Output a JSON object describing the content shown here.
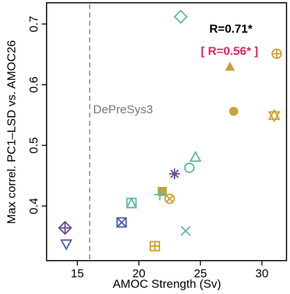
{
  "chart_data": {
    "type": "scatter",
    "xlabel": "AMOC Strength (Sv)",
    "ylabel": "Max correl. PC1–LSD vs. AMOC26",
    "xlim": [
      12.5,
      32.0
    ],
    "ylim": [
      0.31,
      0.735
    ],
    "xticks": [
      15,
      20,
      25,
      30
    ],
    "yticks": [
      0.4,
      0.5,
      0.6,
      0.7
    ],
    "grid": false,
    "reference_line": {
      "x": 16.0,
      "label": "DePreSys3"
    },
    "annotations": {
      "r_all": "R=0.71*",
      "r_other": "[ R=0.56* ]"
    },
    "colors": {
      "teal": "#5fb8a6",
      "gold": "#c9a234",
      "purple": "#6e4c9a",
      "blue": "#4a5fb0",
      "red": "#e6245f",
      "dash": "#777777"
    },
    "points": [
      {
        "x": 23.4,
        "y": 0.712,
        "marker": "diamond",
        "color": "teal"
      },
      {
        "x": 31.2,
        "y": 0.651,
        "marker": "circle-plus",
        "color": "gold"
      },
      {
        "x": 27.4,
        "y": 0.629,
        "marker": "triangle-filled",
        "color": "gold"
      },
      {
        "x": 27.7,
        "y": 0.556,
        "marker": "circle-filled",
        "color": "gold"
      },
      {
        "x": 31.0,
        "y": 0.549,
        "marker": "hourglass",
        "color": "gold"
      },
      {
        "x": 24.6,
        "y": 0.48,
        "marker": "triangle",
        "color": "teal"
      },
      {
        "x": 24.1,
        "y": 0.463,
        "marker": "circle",
        "color": "teal"
      },
      {
        "x": 22.9,
        "y": 0.453,
        "marker": "asterisk",
        "color": "purple"
      },
      {
        "x": 21.9,
        "y": 0.424,
        "marker": "square-filled",
        "color": "gold"
      },
      {
        "x": 21.7,
        "y": 0.419,
        "marker": "plus",
        "color": "teal"
      },
      {
        "x": 22.5,
        "y": 0.412,
        "marker": "circle-x",
        "color": "gold"
      },
      {
        "x": 19.4,
        "y": 0.405,
        "marker": "square-triangle",
        "color": "teal"
      },
      {
        "x": 18.6,
        "y": 0.373,
        "marker": "square-x",
        "color": "blue"
      },
      {
        "x": 23.8,
        "y": 0.359,
        "marker": "cross",
        "color": "teal"
      },
      {
        "x": 14.0,
        "y": 0.364,
        "marker": "diamond-plus",
        "color": "purple"
      },
      {
        "x": 14.1,
        "y": 0.338,
        "marker": "triangle-down",
        "color": "blue"
      },
      {
        "x": 21.3,
        "y": 0.334,
        "marker": "square-plus",
        "color": "gold"
      }
    ]
  }
}
